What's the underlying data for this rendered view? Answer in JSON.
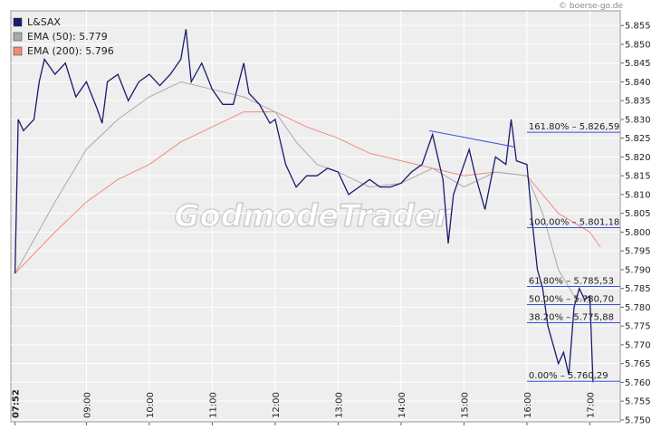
{
  "chart_data": {
    "type": "line",
    "credit": "© boerse-go.de",
    "watermark": "GodmodeTrader",
    "xlim": [
      "07:48",
      "17:29"
    ],
    "xticks": [
      "07:52",
      "09:00",
      "10:00",
      "11:00",
      "12:00",
      "13:00",
      "14:00",
      "15:00",
      "16:00",
      "17:00"
    ],
    "ylim": [
      5.7495,
      5.8589
    ],
    "yticks": [
      {
        "value": 5.75,
        "label": "5.750"
      },
      {
        "value": 5.755,
        "label": "5.755"
      },
      {
        "value": 5.76,
        "label": "5.760"
      },
      {
        "value": 5.765,
        "label": "5.765"
      },
      {
        "value": 5.77,
        "label": "5.770"
      },
      {
        "value": 5.775,
        "label": "5.775"
      },
      {
        "value": 5.78,
        "label": "5.780"
      },
      {
        "value": 5.785,
        "label": "5.785"
      },
      {
        "value": 5.79,
        "label": "5.790"
      },
      {
        "value": 5.795,
        "label": "5.795"
      },
      {
        "value": 5.8,
        "label": "5.800"
      },
      {
        "value": 5.805,
        "label": "5.805"
      },
      {
        "value": 5.81,
        "label": "5.810"
      },
      {
        "value": 5.815,
        "label": "5.815"
      },
      {
        "value": 5.82,
        "label": "5.820"
      },
      {
        "value": 5.825,
        "label": "5.825"
      },
      {
        "value": 5.83,
        "label": "5.830"
      },
      {
        "value": 5.835,
        "label": "5.835"
      },
      {
        "value": 5.84,
        "label": "5.840"
      },
      {
        "value": 5.845,
        "label": "5.845"
      },
      {
        "value": 5.85,
        "label": "5.850"
      },
      {
        "value": 5.855,
        "label": "5.855"
      }
    ],
    "grid": true,
    "series": [
      {
        "name": "L&SAX",
        "color": "#1a1a6e",
        "x": [
          "07:52",
          "07:55",
          "08:00",
          "08:10",
          "08:15",
          "08:20",
          "08:30",
          "08:40",
          "08:50",
          "09:00",
          "09:10",
          "09:15",
          "09:20",
          "09:30",
          "09:40",
          "09:50",
          "10:00",
          "10:10",
          "10:20",
          "10:30",
          "10:35",
          "10:40",
          "10:50",
          "11:00",
          "11:10",
          "11:20",
          "11:30",
          "11:35",
          "11:45",
          "11:55",
          "12:00",
          "12:10",
          "12:20",
          "12:30",
          "12:40",
          "12:50",
          "13:00",
          "13:10",
          "13:20",
          "13:30",
          "13:40",
          "13:50",
          "14:00",
          "14:10",
          "14:20",
          "14:30",
          "14:35",
          "14:40",
          "14:45",
          "14:50",
          "15:00",
          "15:05",
          "15:10",
          "15:20",
          "15:30",
          "15:40",
          "15:45",
          "15:50",
          "16:00",
          "16:05",
          "16:10",
          "16:15",
          "16:20",
          "16:25",
          "16:30",
          "16:35",
          "16:40",
          "16:45",
          "16:50",
          "16:55",
          "17:00",
          "17:03"
        ],
        "values": [
          5.789,
          5.83,
          5.827,
          5.83,
          5.84,
          5.846,
          5.842,
          5.845,
          5.836,
          5.84,
          5.833,
          5.829,
          5.84,
          5.842,
          5.835,
          5.84,
          5.842,
          5.839,
          5.842,
          5.846,
          5.854,
          5.84,
          5.845,
          5.838,
          5.834,
          5.834,
          5.845,
          5.837,
          5.834,
          5.829,
          5.83,
          5.818,
          5.812,
          5.815,
          5.815,
          5.817,
          5.816,
          5.81,
          5.812,
          5.814,
          5.812,
          5.812,
          5.813,
          5.816,
          5.818,
          5.826,
          5.82,
          5.814,
          5.797,
          5.81,
          5.818,
          5.822,
          5.816,
          5.806,
          5.82,
          5.818,
          5.83,
          5.819,
          5.818,
          5.803,
          5.79,
          5.785,
          5.775,
          5.77,
          5.765,
          5.768,
          5.762,
          5.78,
          5.785,
          5.782,
          5.783,
          5.76
        ]
      },
      {
        "name": "EMA (50): 5.779",
        "color": "#aaaaaa",
        "x": [
          "07:52",
          "08:30",
          "09:00",
          "09:30",
          "10:00",
          "10:30",
          "11:00",
          "11:30",
          "12:00",
          "12:20",
          "12:40",
          "13:00",
          "13:30",
          "14:00",
          "14:30",
          "15:00",
          "15:30",
          "16:00",
          "16:15",
          "16:30",
          "16:45",
          "17:00"
        ],
        "values": [
          5.789,
          5.808,
          5.822,
          5.83,
          5.836,
          5.84,
          5.838,
          5.836,
          5.832,
          5.824,
          5.818,
          5.816,
          5.812,
          5.813,
          5.817,
          5.812,
          5.816,
          5.815,
          5.805,
          5.79,
          5.783,
          5.781
        ]
      },
      {
        "name": "EMA (200): 5.796",
        "color": "#f08a80",
        "x": [
          "07:52",
          "08:30",
          "09:00",
          "09:30",
          "10:00",
          "10:30",
          "11:00",
          "11:30",
          "12:00",
          "12:30",
          "13:00",
          "13:30",
          "14:00",
          "14:30",
          "15:00",
          "15:30",
          "16:00",
          "16:30",
          "17:00",
          "17:10"
        ],
        "values": [
          5.789,
          5.8,
          5.808,
          5.814,
          5.818,
          5.824,
          5.828,
          5.832,
          5.832,
          5.828,
          5.825,
          5.821,
          5.819,
          5.817,
          5.815,
          5.816,
          5.815,
          5.805,
          5.8,
          5.796
        ]
      }
    ],
    "trendline": {
      "x": [
        "14:27",
        "15:48"
      ],
      "values": [
        5.827,
        5.8227
      ]
    },
    "fib_levels": [
      {
        "value": 5.82659,
        "label": "161.80% – 5.826,59"
      },
      {
        "value": 5.80118,
        "label": "100.00% – 5.801,18"
      },
      {
        "value": 5.78553,
        "label": "61.80% – 5.785,53"
      },
      {
        "value": 5.7807,
        "label": "50.00% – 5.780,70"
      },
      {
        "value": 5.77588,
        "label": "38.20% – 5.775,88"
      },
      {
        "value": 5.76029,
        "label": "0.00% – 5.760,29"
      }
    ],
    "fib_start": "16:00"
  }
}
